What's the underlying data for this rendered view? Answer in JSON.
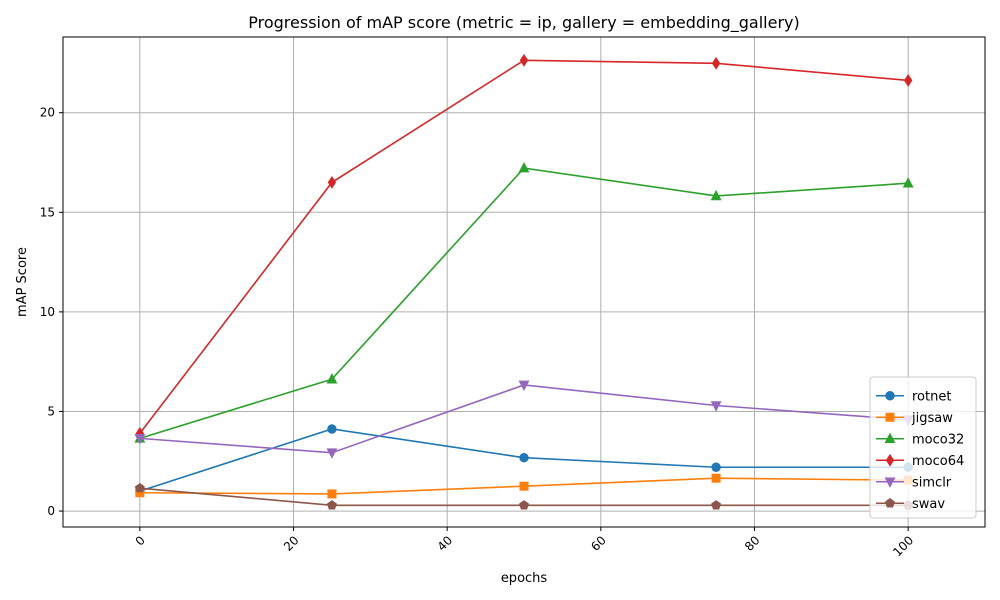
{
  "chart_data": {
    "type": "line",
    "title": "Progression of mAP score (metric = ip, gallery = embedding_gallery)",
    "xlabel": "epochs",
    "ylabel": "mAP Score",
    "xlim": [
      -10,
      110
    ],
    "ylim": [
      -0.8,
      23.8
    ],
    "xticks": [
      0,
      20,
      40,
      60,
      80,
      100
    ],
    "yticks": [
      0,
      5,
      10,
      15,
      20
    ],
    "xtick_rotation": 45,
    "grid": true,
    "legend_position": "lower right",
    "x": [
      0,
      25,
      50,
      75,
      100
    ],
    "series": [
      {
        "name": "rotnet",
        "color": "#1f77b4",
        "marker": "circle",
        "values": [
          1.0,
          4.12,
          2.68,
          2.2,
          2.2
        ]
      },
      {
        "name": "jigsaw",
        "color": "#ff7f0e",
        "marker": "square",
        "values": [
          0.92,
          0.86,
          1.25,
          1.65,
          1.55
        ]
      },
      {
        "name": "moco32",
        "color": "#2ca02c",
        "marker": "triangle-up",
        "values": [
          3.65,
          6.62,
          17.22,
          15.82,
          16.46
        ]
      },
      {
        "name": "moco64",
        "color": "#d62728",
        "marker": "diamond",
        "values": [
          3.9,
          16.5,
          22.63,
          22.48,
          21.62
        ]
      },
      {
        "name": "simclr",
        "color": "#9467bd",
        "marker": "triangle-down",
        "values": [
          3.65,
          2.93,
          6.33,
          5.3,
          4.58
        ]
      },
      {
        "name": "swav",
        "color": "#8c564b",
        "marker": "pentagon",
        "values": [
          1.15,
          0.29,
          0.29,
          0.29,
          0.29
        ]
      }
    ]
  }
}
